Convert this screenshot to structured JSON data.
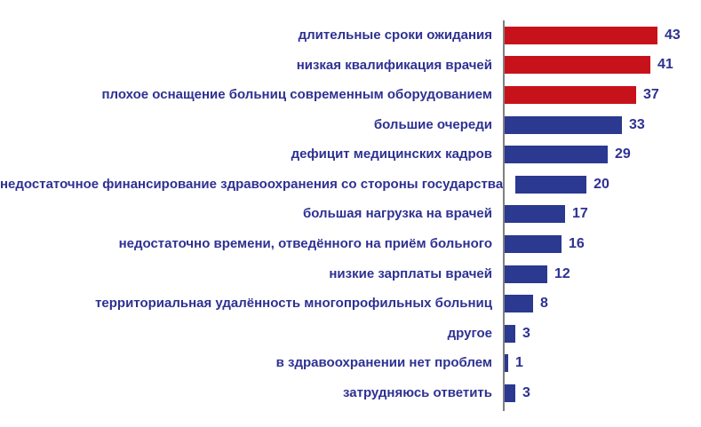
{
  "chart_data": {
    "type": "bar",
    "orientation": "horizontal",
    "title": "",
    "xlabel": "",
    "ylabel": "",
    "xlim": [
      0,
      45
    ],
    "grid": false,
    "legend": false,
    "categories": [
      "длительные сроки ожидания",
      "низкая квалификация врачей",
      "плохое оснащение больниц современным оборудованием",
      "большие очереди",
      "дефицит медицинских кадров",
      "недостаточное финансирование здравоохранения со стороны государства",
      "большая нагрузка на врачей",
      "недостаточно времени, отведённого на приём больного",
      "низкие зарплаты врачей",
      "территориальная удалённость многопрофильных больниц",
      "другое",
      "в здравоохранении нет проблем",
      "затрудняюсь ответить"
    ],
    "values": [
      43,
      41,
      37,
      33,
      29,
      20,
      17,
      16,
      12,
      8,
      3,
      1,
      3
    ],
    "bar_colors": [
      "#C8121B",
      "#C8121B",
      "#C8121B",
      "#2B3990",
      "#2B3990",
      "#2B3990",
      "#2B3990",
      "#2B3990",
      "#2B3990",
      "#2B3990",
      "#2B3990",
      "#2B3990",
      "#2B3990"
    ],
    "colors": {
      "red": "#C8121B",
      "blue": "#2B3990",
      "label_text": "#2E3192",
      "axis_line": "#7F7F7F",
      "background": "#FFFFFF"
    }
  }
}
